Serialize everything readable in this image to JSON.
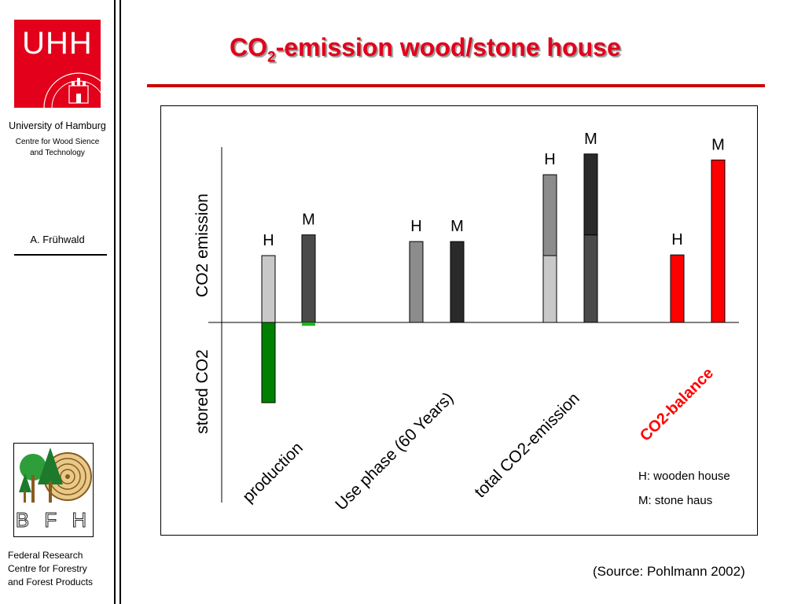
{
  "sidebar": {
    "logo_text": "UHH",
    "university": "University of Hamburg",
    "centre_line1": "Centre for Wood Sience",
    "centre_line2": "and Technology",
    "author": "A. Frühwald",
    "bfh_logo_text": "B F H",
    "federal_line1": "Federal Research",
    "federal_line2": "Centre for Forestry",
    "federal_line3": "and Forest Products"
  },
  "header": {
    "title_prefix": "CO",
    "title_sub": "2",
    "title_suffix": "-emission wood/stone house"
  },
  "source": "(Source: Pohlmann 2002)",
  "colors": {
    "accent": "#e2001a",
    "green": "#008000",
    "bright_green": "#1cb51c",
    "light_grey": "#c8c8c8",
    "mid_grey": "#8c8c8c",
    "dark_grey": "#4a4a4a",
    "darker_grey": "#2a2a2a",
    "red": "#ff0000"
  },
  "chart_data": {
    "type": "bar",
    "ylabel_top": "CO2 emission",
    "ylabel_bottom": "stored CO2",
    "categories": [
      "production",
      "Use phase (60 Years)",
      "total CO2-emission",
      "CO2-balance"
    ],
    "legend": [
      "H: wooden house",
      "M: stone haus"
    ],
    "ylim": [
      -120,
      250
    ],
    "bars": [
      {
        "category": "production",
        "label": "H",
        "segments": [
          {
            "from": 0,
            "to": 100,
            "color": "light_grey"
          },
          {
            "from": -120,
            "to": 0,
            "color": "green"
          }
        ]
      },
      {
        "category": "production",
        "label": "M",
        "segments": [
          {
            "from": 0,
            "to": 131,
            "color": "dark_grey"
          },
          {
            "from": -5,
            "to": 0,
            "color": "bright_green"
          }
        ]
      },
      {
        "category": "Use phase (60 Years)",
        "label": "H",
        "segments": [
          {
            "from": 0,
            "to": 121,
            "color": "mid_grey"
          }
        ]
      },
      {
        "category": "Use phase (60 Years)",
        "label": "M",
        "segments": [
          {
            "from": 0,
            "to": 121,
            "color": "darker_grey"
          }
        ]
      },
      {
        "category": "total CO2-emission",
        "label": "H",
        "segments": [
          {
            "from": 0,
            "to": 100,
            "color": "light_grey"
          },
          {
            "from": 100,
            "to": 221,
            "color": "mid_grey"
          }
        ]
      },
      {
        "category": "total CO2-emission",
        "label": "M",
        "segments": [
          {
            "from": 0,
            "to": 131,
            "color": "dark_grey"
          },
          {
            "from": 131,
            "to": 252,
            "color": "darker_grey"
          }
        ]
      },
      {
        "category": "CO2-balance",
        "label": "H",
        "segments": [
          {
            "from": 0,
            "to": 101,
            "color": "red"
          }
        ]
      },
      {
        "category": "CO2-balance",
        "label": "M",
        "segments": [
          {
            "from": 0,
            "to": 243,
            "color": "red"
          }
        ]
      }
    ]
  }
}
